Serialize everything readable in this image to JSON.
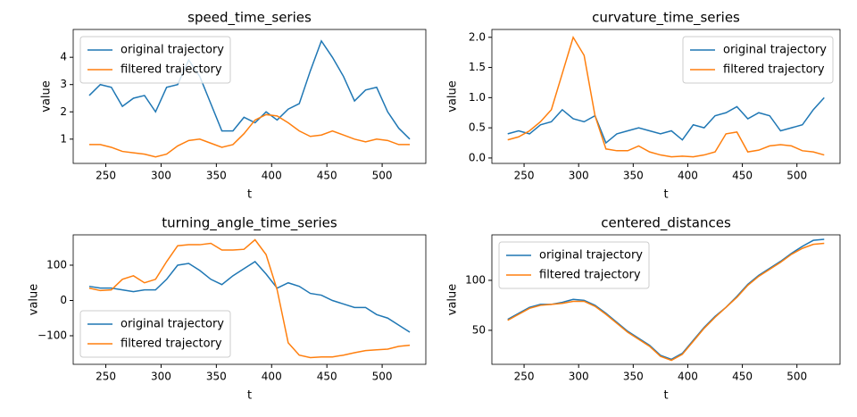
{
  "chart_data": [
    {
      "type": "line",
      "title": "speed_time_series",
      "xlabel": "t",
      "ylabel": "value",
      "legend": "upper left",
      "x": [
        235,
        245,
        255,
        265,
        275,
        285,
        295,
        305,
        315,
        325,
        335,
        345,
        355,
        365,
        375,
        385,
        395,
        405,
        415,
        425,
        435,
        445,
        455,
        465,
        475,
        485,
        495,
        505,
        515,
        525
      ],
      "xlim": [
        220.5,
        539.5
      ],
      "xticks": [
        250,
        300,
        350,
        400,
        450,
        500
      ],
      "ylim": [
        0.11,
        5.02
      ],
      "yticks": [
        1,
        2,
        3,
        4
      ],
      "series": [
        {
          "name": "original trajectory",
          "color": "#1f77b4",
          "values": [
            2.6,
            3.0,
            2.9,
            2.2,
            2.5,
            2.6,
            2.0,
            2.9,
            3.0,
            3.9,
            3.3,
            2.3,
            1.3,
            1.3,
            1.8,
            1.6,
            2.0,
            1.7,
            2.1,
            2.3,
            3.5,
            4.6,
            4.0,
            3.3,
            2.4,
            2.8,
            2.9,
            2.0,
            1.4,
            1.0
          ]
        },
        {
          "name": "filtered trajectory",
          "color": "#ff7f0e",
          "values": [
            0.8,
            0.8,
            0.7,
            0.55,
            0.5,
            0.45,
            0.35,
            0.45,
            0.75,
            0.95,
            1.0,
            0.85,
            0.7,
            0.8,
            1.2,
            1.7,
            1.9,
            1.85,
            1.6,
            1.3,
            1.1,
            1.15,
            1.3,
            1.15,
            1.0,
            0.9,
            1.0,
            0.95,
            0.8,
            0.8
          ]
        }
      ]
    },
    {
      "type": "line",
      "title": "curvature_time_series",
      "xlabel": "t",
      "ylabel": "value",
      "legend": "upper right",
      "x": [
        235,
        245,
        255,
        265,
        275,
        285,
        295,
        305,
        315,
        325,
        335,
        345,
        355,
        365,
        375,
        385,
        395,
        405,
        415,
        425,
        435,
        445,
        455,
        465,
        475,
        485,
        495,
        505,
        515,
        525
      ],
      "xlim": [
        220.5,
        539.5
      ],
      "xticks": [
        250,
        300,
        350,
        400,
        450,
        500
      ],
      "ylim": [
        -0.09,
        2.13
      ],
      "yticks": [
        {
          "value": 0,
          "label": "0.0"
        },
        0.5,
        {
          "value": 1,
          "label": "1.0"
        },
        1.5,
        {
          "value": 2,
          "label": "2.0"
        }
      ],
      "series": [
        {
          "name": "original trajectory",
          "color": "#1f77b4",
          "values": [
            0.4,
            0.45,
            0.4,
            0.55,
            0.6,
            0.8,
            0.65,
            0.6,
            0.7,
            0.25,
            0.4,
            0.45,
            0.5,
            0.45,
            0.4,
            0.45,
            0.3,
            0.55,
            0.5,
            0.7,
            0.75,
            0.85,
            0.65,
            0.75,
            0.7,
            0.45,
            0.5,
            0.55,
            0.8,
            1.0
          ]
        },
        {
          "name": "filtered trajectory",
          "color": "#ff7f0e",
          "values": [
            0.3,
            0.35,
            0.45,
            0.6,
            0.8,
            1.4,
            2.0,
            1.7,
            0.7,
            0.15,
            0.12,
            0.12,
            0.2,
            0.1,
            0.05,
            0.02,
            0.03,
            0.02,
            0.05,
            0.1,
            0.4,
            0.43,
            0.1,
            0.13,
            0.2,
            0.22,
            0.2,
            0.12,
            0.1,
            0.05
          ]
        }
      ]
    },
    {
      "type": "line",
      "title": "turning_angle_time_series",
      "xlabel": "t",
      "ylabel": "value",
      "legend": "lower left",
      "x": [
        235,
        245,
        255,
        265,
        275,
        285,
        295,
        305,
        315,
        325,
        335,
        345,
        355,
        365,
        375,
        385,
        395,
        405,
        415,
        425,
        435,
        445,
        455,
        465,
        475,
        485,
        495,
        505,
        515,
        525
      ],
      "xlim": [
        220.5,
        539.5
      ],
      "xticks": [
        250,
        300,
        350,
        400,
        450,
        500
      ],
      "ylim": [
        -181,
        186
      ],
      "yticks": [
        {
          "value": -100,
          "label": "−100"
        },
        0,
        100
      ],
      "series": [
        {
          "name": "original trajectory",
          "color": "#1f77b4",
          "values": [
            40,
            35,
            35,
            30,
            25,
            30,
            30,
            60,
            100,
            105,
            85,
            60,
            45,
            70,
            90,
            110,
            75,
            35,
            50,
            40,
            20,
            15,
            0,
            -10,
            -20,
            -20,
            -40,
            -50,
            -70,
            -90
          ]
        },
        {
          "name": "filtered trajectory",
          "color": "#ff7f0e",
          "values": [
            35,
            28,
            30,
            60,
            70,
            50,
            60,
            110,
            155,
            158,
            158,
            162,
            143,
            143,
            145,
            172,
            130,
            30,
            -120,
            -155,
            -162,
            -160,
            -160,
            -155,
            -148,
            -142,
            -140,
            -138,
            -130,
            -127
          ]
        }
      ]
    },
    {
      "type": "line",
      "title": "centered_distances",
      "xlabel": "t",
      "ylabel": "value",
      "legend": "upper left",
      "x": [
        235,
        245,
        255,
        265,
        275,
        285,
        295,
        305,
        315,
        325,
        335,
        345,
        355,
        365,
        375,
        385,
        395,
        405,
        415,
        425,
        435,
        445,
        455,
        465,
        475,
        485,
        495,
        505,
        515,
        525
      ],
      "xlim": [
        220.5,
        539.5
      ],
      "xticks": [
        250,
        300,
        350,
        400,
        450,
        500
      ],
      "ylim": [
        16,
        145.5
      ],
      "yticks": [
        50,
        100
      ],
      "series": [
        {
          "name": "original trajectory",
          "color": "#1f77b4",
          "values": [
            61,
            67,
            73,
            76,
            76,
            78,
            81,
            80,
            75,
            67,
            58,
            49,
            42,
            35,
            25,
            21,
            27,
            40,
            53,
            64,
            73,
            84,
            96,
            105,
            112,
            119,
            127,
            134,
            140,
            141
          ]
        },
        {
          "name": "filtered trajectory",
          "color": "#ff7f0e",
          "values": [
            60,
            66,
            72,
            75,
            76,
            77,
            79,
            79,
            74,
            66,
            57,
            48,
            41,
            34,
            24,
            20,
            26,
            39,
            52,
            63,
            73,
            83,
            95,
            104,
            111,
            118,
            126,
            132,
            136,
            137
          ]
        }
      ]
    }
  ]
}
